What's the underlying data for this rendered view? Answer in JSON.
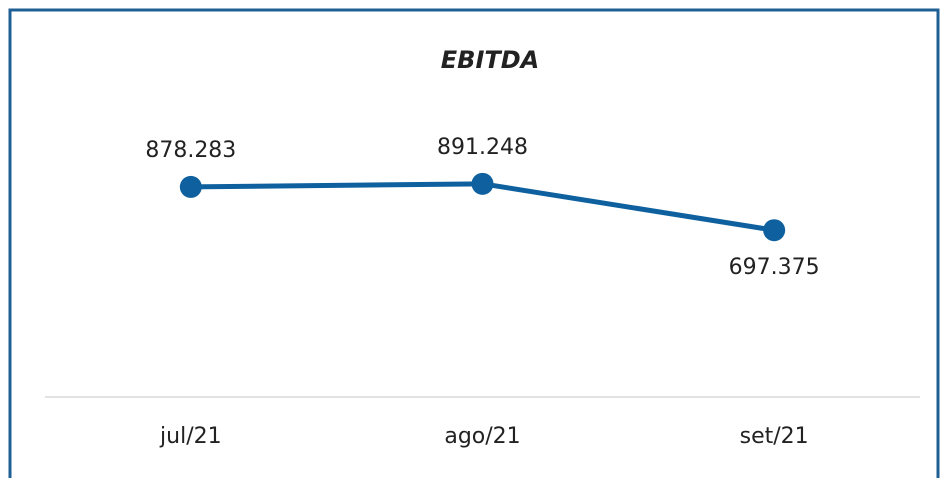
{
  "chart_data": {
    "type": "line",
    "title": "EBITDA",
    "categories": [
      "jul/21",
      "ago/21",
      "set/21"
    ],
    "series": [
      {
        "name": "EBITDA",
        "color": "#0e619e",
        "values": [
          878283,
          891248,
          697375
        ],
        "value_labels": [
          "878.283",
          "891.248",
          "697.375"
        ]
      }
    ],
    "ylim": [
      0,
      1250000
    ]
  }
}
